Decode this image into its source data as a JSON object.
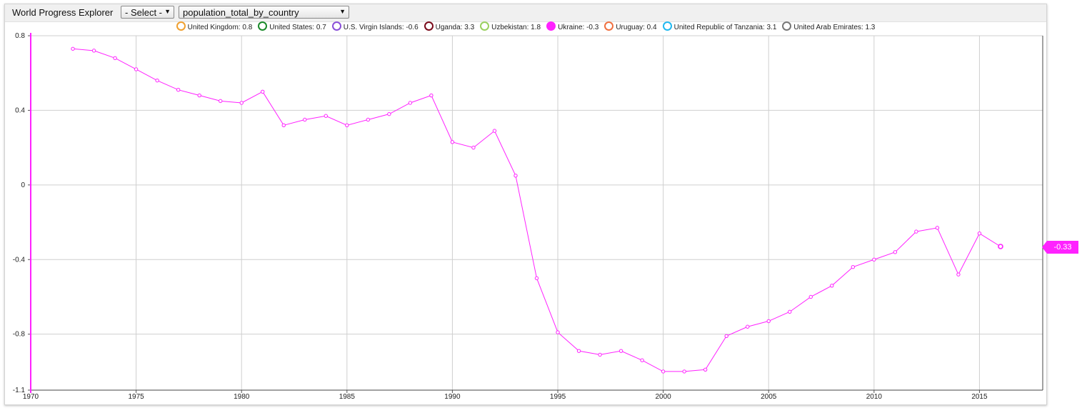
{
  "app": {
    "title": "World Progress Explorer",
    "country_select": "- Select -",
    "dataset_select": "population_total_by_country"
  },
  "legend": [
    {
      "label": "United Kingdom: 0.8",
      "color": "#f0a030",
      "filled": false
    },
    {
      "label": "United States: 0.7",
      "color": "#1a8a2a",
      "filled": false
    },
    {
      "label": "U.S. Virgin Islands: -0.6",
      "color": "#8a4fd8",
      "filled": false
    },
    {
      "label": "Uganda: 3.3",
      "color": "#7a0a1a",
      "filled": false
    },
    {
      "label": "Uzbekistan: 1.8",
      "color": "#9ad060",
      "filled": false
    },
    {
      "label": "Ukraine: -0.3",
      "color": "#ff22ff",
      "filled": true
    },
    {
      "label": "Uruguay: 0.4",
      "color": "#f07040",
      "filled": false
    },
    {
      "label": "United Republic of Tanzania: 3.1",
      "color": "#20b8f0",
      "filled": false
    },
    {
      "label": "United Arab Emirates: 1.3",
      "color": "#777777",
      "filled": false
    }
  ],
  "value_tag": "-0.33",
  "chart_data": {
    "type": "line",
    "x_ticks": [
      "1970",
      "1975",
      "1980",
      "1985",
      "1990",
      "1995",
      "2000",
      "2005",
      "2010",
      "2015"
    ],
    "y_ticks": [
      "0.8",
      "0.4",
      "0",
      "-0.4",
      "-0.8",
      "-1.1"
    ],
    "xlim": [
      1970,
      2018
    ],
    "ylim": [
      -1.1,
      0.8
    ],
    "grid": true,
    "legend_position": "top",
    "series": [
      {
        "name": "Ukraine",
        "color": "#ff22ff",
        "x": [
          1972,
          1973,
          1974,
          1975,
          1976,
          1977,
          1978,
          1979,
          1980,
          1981,
          1982,
          1983,
          1984,
          1985,
          1986,
          1987,
          1988,
          1989,
          1990,
          1991,
          1992,
          1993,
          1994,
          1995,
          1996,
          1997,
          1998,
          1999,
          2000,
          2001,
          2002,
          2003,
          2004,
          2005,
          2006,
          2007,
          2008,
          2009,
          2010,
          2011,
          2012,
          2013,
          2014,
          2015,
          2016
        ],
        "y": [
          0.73,
          0.72,
          0.68,
          0.62,
          0.56,
          0.51,
          0.48,
          0.45,
          0.44,
          0.5,
          0.32,
          0.35,
          0.37,
          0.32,
          0.35,
          0.38,
          0.44,
          0.48,
          0.23,
          0.2,
          0.29,
          0.05,
          -0.5,
          -0.79,
          -0.89,
          -0.91,
          -0.89,
          -0.94,
          -1.0,
          -1.0,
          -0.99,
          -0.81,
          -0.76,
          -0.73,
          -0.68,
          -0.6,
          -0.54,
          -0.44,
          -0.4,
          -0.36,
          -0.25,
          -0.23,
          -0.48,
          -0.26,
          -0.33
        ]
      }
    ]
  }
}
